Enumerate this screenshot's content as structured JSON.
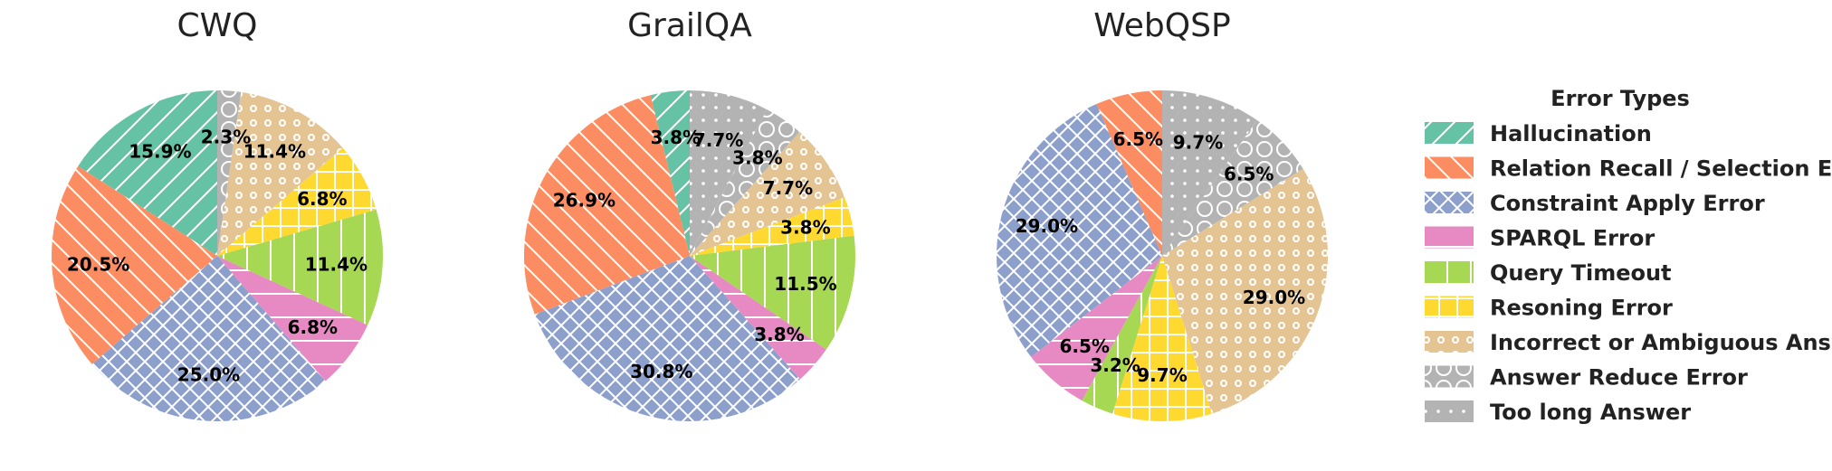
{
  "legend": {
    "title": "Error Types",
    "items": [
      {
        "label": "Hallucination",
        "color": "#66c2a5",
        "hatch": "diag-right"
      },
      {
        "label": "Relation Recall / Selection Error",
        "color": "#fc8d62",
        "hatch": "diag-left"
      },
      {
        "label": "Constraint Apply Error",
        "color": "#8da0cb",
        "hatch": "cross"
      },
      {
        "label": "SPARQL Error",
        "color": "#e78ac3",
        "hatch": "horizontal"
      },
      {
        "label": "Query Timeout",
        "color": "#a6d854",
        "hatch": "vertical"
      },
      {
        "label": "Resoning Error",
        "color": "#ffd92f",
        "hatch": "grid"
      },
      {
        "label": "Incorrect or Ambiguous Answer",
        "color": "#e5c494",
        "hatch": "small-circles"
      },
      {
        "label": "Answer Reduce Error",
        "color": "#b3b3b3",
        "hatch": "big-circles"
      },
      {
        "label": "Too long Answer",
        "color": "#b3b3b3",
        "hatch": "dots"
      }
    ]
  },
  "chart_data": [
    {
      "type": "pie",
      "title": "CWQ",
      "start": "top",
      "direction": "counterclockwise",
      "slices": [
        {
          "category": "Hallucination",
          "value": 15.9,
          "label": "15.9%"
        },
        {
          "category": "Relation Recall / Selection Error",
          "value": 20.5,
          "label": "20.5%"
        },
        {
          "category": "Constraint Apply Error",
          "value": 25.0,
          "label": "25.0%"
        },
        {
          "category": "SPARQL Error",
          "value": 6.8,
          "label": "6.8%"
        },
        {
          "category": "Query Timeout",
          "value": 11.4,
          "label": "11.4%"
        },
        {
          "category": "Resoning Error",
          "value": 6.8,
          "label": "6.8%"
        },
        {
          "category": "Incorrect or Ambiguous Answer",
          "value": 11.4,
          "label": "11.4%"
        },
        {
          "category": "Answer Reduce Error",
          "value": 2.3,
          "label": "2.3%"
        }
      ]
    },
    {
      "type": "pie",
      "title": "GrailQA",
      "start": "top",
      "direction": "counterclockwise",
      "slices": [
        {
          "category": "Hallucination",
          "value": 3.8,
          "label": "3.8%"
        },
        {
          "category": "Relation Recall / Selection Error",
          "value": 26.9,
          "label": "26.9%"
        },
        {
          "category": "Constraint Apply Error",
          "value": 30.8,
          "label": "30.8%"
        },
        {
          "category": "SPARQL Error",
          "value": 3.8,
          "label": "3.8%"
        },
        {
          "category": "Query Timeout",
          "value": 11.5,
          "label": "11.5%"
        },
        {
          "category": "Resoning Error",
          "value": 3.8,
          "label": "3.8%"
        },
        {
          "category": "Incorrect or Ambiguous Answer",
          "value": 7.7,
          "label": "7.7%"
        },
        {
          "category": "Answer Reduce Error",
          "value": 3.8,
          "label": "3.8%"
        },
        {
          "category": "Too long Answer",
          "value": 7.7,
          "label": "7.7%"
        }
      ]
    },
    {
      "type": "pie",
      "title": "WebQSP",
      "start": "top",
      "direction": "counterclockwise",
      "slices": [
        {
          "category": "Relation Recall / Selection Error",
          "value": 6.5,
          "label": "6.5%"
        },
        {
          "category": "Constraint Apply Error",
          "value": 29.0,
          "label": "29.0%"
        },
        {
          "category": "SPARQL Error",
          "value": 6.5,
          "label": "6.5%"
        },
        {
          "category": "Query Timeout",
          "value": 3.2,
          "label": "3.2%"
        },
        {
          "category": "Resoning Error",
          "value": 9.7,
          "label": "9.7%"
        },
        {
          "category": "Incorrect or Ambiguous Answer",
          "value": 29.0,
          "label": "29.0%"
        },
        {
          "category": "Answer Reduce Error",
          "value": 6.5,
          "label": "6.5%"
        },
        {
          "category": "Too long Answer",
          "value": 9.7,
          "label": "9.7%"
        }
      ]
    }
  ]
}
